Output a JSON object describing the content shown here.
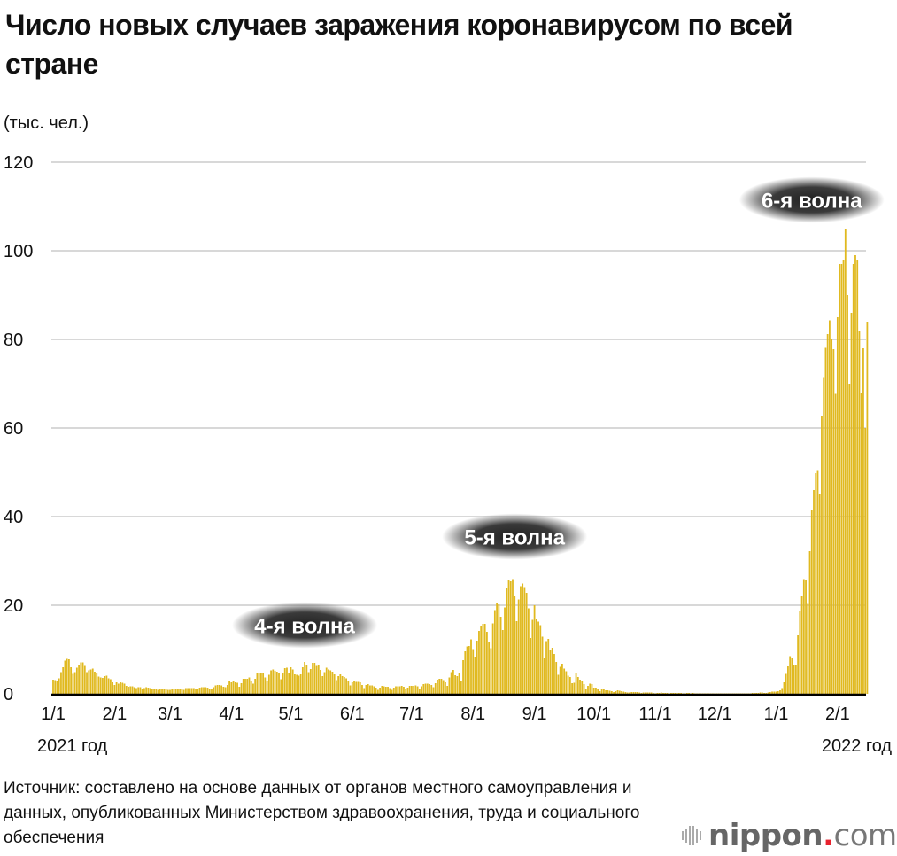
{
  "title": "Число новых случаев заражения коронавирусом по всей стране",
  "source": "Источник: составлено на основе данных от органов местного самоуправления и данных, опубликованных Министерством здравоохранения, труда и социального обеспечения",
  "logo": {
    "brand": "nippon",
    "dot": ".",
    "tld": "com"
  },
  "colors": {
    "bar": "#e0b91f",
    "grid": "#cccccc",
    "axis": "#000000",
    "label_bg": "#333333"
  },
  "chart_data": {
    "type": "bar",
    "title": "Число новых случаев заражения коронавирусом по всей стране",
    "ylabel": "(тыс. чел.)",
    "xlabel": "",
    "ylim": [
      0,
      120
    ],
    "yticks": [
      0,
      20,
      40,
      60,
      80,
      100,
      120
    ],
    "grid": true,
    "start_date": "2021-01-01",
    "xticks": [
      {
        "day": 0,
        "label": "1/1",
        "sub": "2021 год"
      },
      {
        "day": 31,
        "label": "2/1"
      },
      {
        "day": 59,
        "label": "3/1"
      },
      {
        "day": 90,
        "label": "4/1"
      },
      {
        "day": 120,
        "label": "5/1"
      },
      {
        "day": 151,
        "label": "6/1"
      },
      {
        "day": 181,
        "label": "7/1"
      },
      {
        "day": 212,
        "label": "8/1"
      },
      {
        "day": 243,
        "label": "9/1"
      },
      {
        "day": 273,
        "label": "10/1"
      },
      {
        "day": 304,
        "label": "11/1"
      },
      {
        "day": 334,
        "label": "12/1"
      },
      {
        "day": 365,
        "label": "1/1"
      },
      {
        "day": 396,
        "label": "2/1",
        "sub": "2022 год"
      }
    ],
    "annotations": [
      {
        "text": "4-я волна",
        "day": 127,
        "value": 15.5
      },
      {
        "text": "5-я волна",
        "day": 233,
        "value": 35.5
      },
      {
        "text": "6-я волна",
        "day": 383,
        "value": 111.5
      }
    ],
    "values": [
      3.2,
      3.1,
      3.0,
      3.5,
      4.9,
      6.0,
      7.5,
      7.9,
      7.8,
      6.0,
      4.5,
      4.9,
      5.9,
      6.6,
      7.1,
      7.1,
      6.3,
      4.9,
      5.3,
      5.5,
      5.7,
      5.0,
      4.7,
      3.9,
      3.7,
      3.6,
      4.0,
      4.1,
      3.5,
      3.3,
      2.6,
      2.0,
      2.6,
      2.3,
      2.6,
      2.5,
      2.3,
      1.8,
      1.6,
      1.7,
      1.7,
      1.5,
      1.3,
      1.5,
      1.5,
      1.0,
      1.3,
      1.5,
      1.4,
      1.3,
      1.2,
      1.2,
      1.0,
      0.9,
      1.2,
      1.1,
      1.1,
      1.0,
      0.9,
      0.9,
      1.0,
      1.2,
      1.1,
      1.1,
      1.1,
      1.0,
      0.9,
      1.3,
      1.3,
      1.3,
      1.3,
      1.3,
      1.0,
      1.0,
      1.4,
      1.5,
      1.5,
      1.5,
      1.4,
      1.1,
      1.1,
      1.5,
      1.9,
      2.0,
      2.0,
      1.9,
      1.6,
      1.5,
      2.0,
      2.8,
      2.6,
      2.8,
      2.6,
      2.5,
      1.6,
      2.4,
      3.4,
      3.4,
      3.4,
      3.7,
      2.8,
      2.3,
      3.4,
      4.6,
      4.6,
      4.8,
      4.8,
      3.7,
      2.9,
      4.3,
      5.3,
      5.5,
      5.2,
      5.0,
      4.6,
      3.3,
      4.8,
      5.8,
      5.9,
      4.7,
      6.0,
      5.5,
      4.4,
      4.3,
      4.1,
      4.4,
      6.0,
      7.2,
      6.5,
      4.9,
      5.6,
      7.0,
      7.0,
      6.3,
      6.4,
      5.4,
      4.0,
      4.9,
      5.9,
      5.5,
      5.3,
      5.0,
      4.4,
      3.1,
      4.0,
      4.4,
      4.0,
      3.8,
      3.5,
      3.0,
      1.9,
      2.6,
      3.0,
      2.7,
      2.7,
      2.6,
      2.0,
      1.3,
      2.0,
      2.2,
      1.9,
      1.9,
      1.7,
      1.4,
      0.9,
      1.4,
      1.8,
      1.7,
      1.6,
      1.6,
      1.3,
      0.9,
      1.4,
      1.7,
      1.7,
      1.7,
      1.8,
      1.6,
      1.1,
      1.4,
      1.8,
      1.8,
      1.8,
      1.9,
      1.7,
      1.2,
      1.7,
      2.2,
      2.3,
      2.3,
      2.2,
      2.0,
      1.5,
      2.4,
      3.2,
      3.4,
      3.4,
      3.1,
      2.6,
      1.8,
      3.7,
      4.9,
      5.4,
      4.2,
      4.0,
      4.7,
      2.9,
      7.6,
      9.6,
      10.7,
      10.8,
      12.3,
      10.1,
      8.4,
      12.0,
      14.2,
      15.3,
      15.8,
      15.8,
      14.0,
      11.7,
      10.3,
      15.9,
      18.9,
      20.4,
      20.2,
      17.4,
      14.4,
      19.5,
      23.9,
      25.6,
      25.4,
      25.9,
      22.0,
      16.4,
      21.3,
      24.3,
      24.9,
      24.1,
      22.8,
      19.3,
      12.6,
      16.7,
      20.0,
      16.8,
      16.3,
      15.5,
      12.9,
      8.2,
      11.9,
      12.4,
      9.9,
      10.4,
      9.0,
      7.2,
      4.3,
      6.1,
      6.8,
      5.7,
      5.1,
      4.1,
      3.8,
      2.4,
      2.5,
      4.7,
      3.8,
      3.2,
      2.9,
      2.2,
      1.1,
      1.8,
      2.3,
      2.2,
      1.4,
      1.4,
      1.2,
      0.6,
      1.0,
      1.1,
      0.8,
      0.8,
      0.7,
      0.6,
      0.4,
      0.6,
      0.8,
      0.7,
      0.6,
      0.5,
      0.4,
      0.3,
      0.3,
      0.4,
      0.4,
      0.4,
      0.4,
      0.3,
      0.2,
      0.3,
      0.3,
      0.3,
      0.3,
      0.3,
      0.2,
      0.1,
      0.2,
      0.2,
      0.3,
      0.2,
      0.2,
      0.2,
      0.1,
      0.2,
      0.2,
      0.2,
      0.2,
      0.2,
      0.2,
      0.1,
      0.1,
      0.2,
      0.2,
      0.1,
      0.2,
      0.1,
      0.1,
      0.1,
      0.1,
      0.1,
      0.1,
      0.1,
      0.1,
      0.1,
      0.1,
      0.1,
      0.1,
      0.1,
      0.1,
      0.1,
      0.1,
      0.1,
      0.1,
      0.1,
      0.1,
      0.1,
      0.1,
      0.1,
      0.1,
      0.1,
      0.1,
      0.1,
      0.1,
      0.1,
      0.2,
      0.2,
      0.2,
      0.2,
      0.3,
      0.3,
      0.2,
      0.2,
      0.3,
      0.4,
      0.5,
      0.5,
      0.5,
      0.6,
      0.8,
      1.3,
      2.6,
      4.5,
      6.2,
      8.5,
      8.2,
      6.4,
      6.4,
      13.2,
      18.8,
      22.0,
      25.9,
      25.7,
      20.3,
      32.2,
      41.4,
      46.0,
      49.8,
      50.5,
      45.0,
      62.6,
      71.3,
      78.1,
      81.2,
      84.3,
      80.0,
      77.8,
      67.7,
      85.0,
      97.0,
      97.0,
      98.0,
      105.0,
      90.0,
      70.0,
      86.0,
      97.0,
      99.0,
      98.0,
      82.0,
      68.0,
      78.0,
      60.0,
      84.0
    ]
  }
}
